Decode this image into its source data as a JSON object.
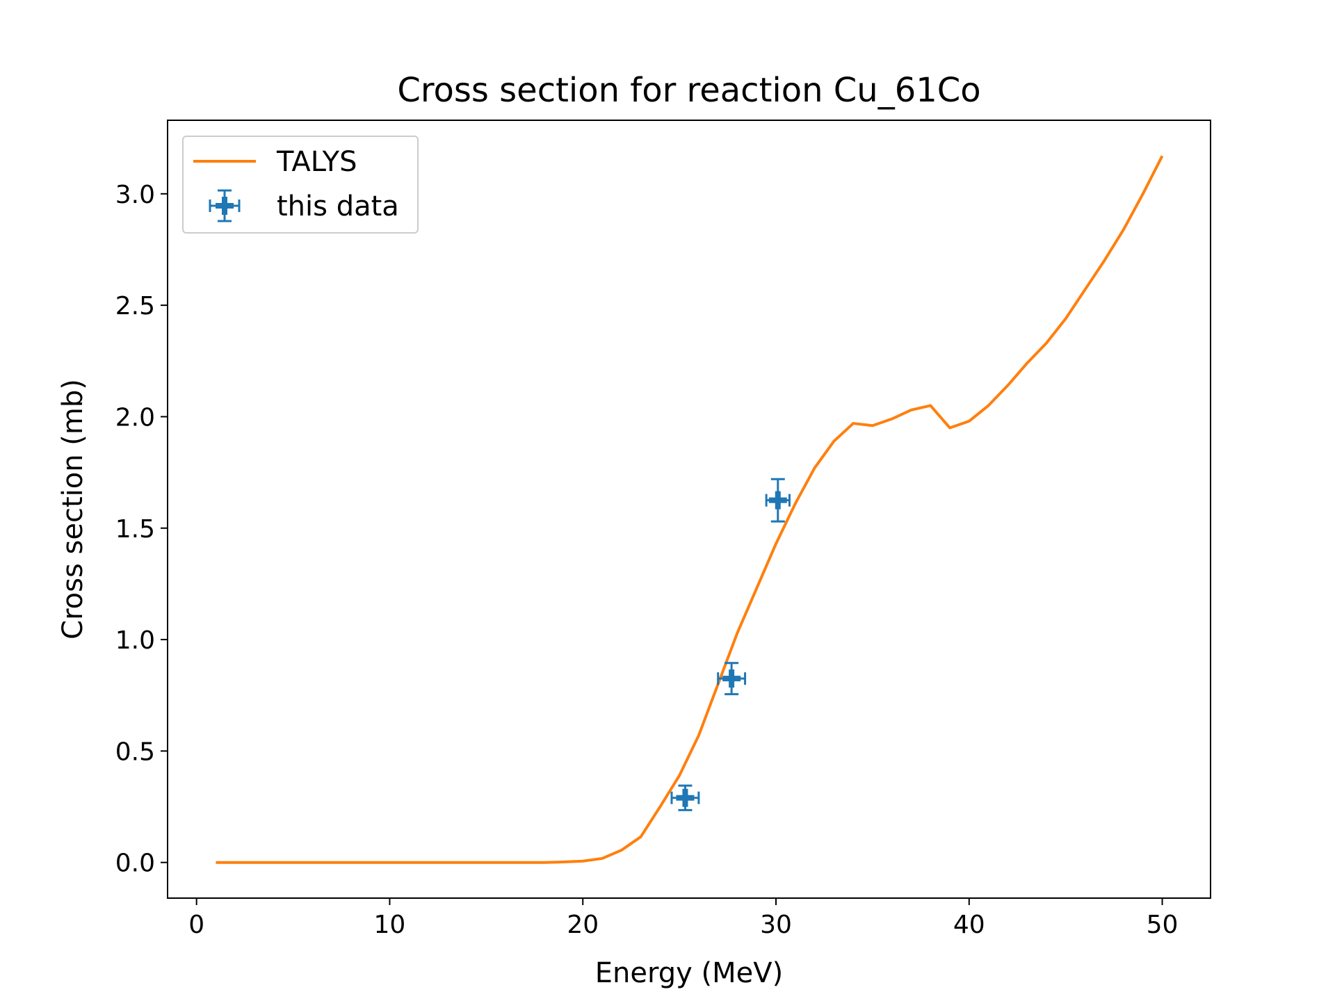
{
  "chart_data": {
    "type": "line",
    "title": "Cross section for reaction Cu_61Co",
    "xlabel": "Energy (MeV)",
    "ylabel": "Cross section (mb)",
    "xlim": [
      -1.5,
      52.5
    ],
    "ylim": [
      -0.16,
      3.33
    ],
    "x_ticks": [
      0,
      10,
      20,
      30,
      40,
      50
    ],
    "x_tick_labels": [
      "0",
      "10",
      "20",
      "30",
      "40",
      "50"
    ],
    "y_ticks": [
      0.0,
      0.5,
      1.0,
      1.5,
      2.0,
      2.5,
      3.0
    ],
    "y_tick_labels": [
      "0.0",
      "0.5",
      "1.0",
      "1.5",
      "2.0",
      "2.5",
      "3.0"
    ],
    "grid": false,
    "legend_position": "upper-left",
    "series": [
      {
        "name": "TALYS",
        "kind": "line",
        "color": "#ff7f0e",
        "x": [
          1,
          2,
          3,
          4,
          5,
          6,
          7,
          8,
          9,
          10,
          11,
          12,
          13,
          14,
          15,
          16,
          17,
          18,
          19,
          20,
          21,
          22,
          23,
          24,
          25,
          26,
          27,
          28,
          29,
          30,
          31,
          32,
          33,
          34,
          35,
          36,
          37,
          38,
          39,
          40,
          41,
          42,
          43,
          44,
          45,
          46,
          47,
          48,
          49,
          50
        ],
        "y": [
          0,
          0,
          0,
          0,
          0,
          0,
          0,
          0,
          0,
          0,
          0,
          0,
          0,
          0,
          0,
          0,
          0,
          0,
          0.002,
          0.006,
          0.018,
          0.055,
          0.115,
          0.25,
          0.39,
          0.57,
          0.8,
          1.03,
          1.23,
          1.43,
          1.61,
          1.77,
          1.89,
          1.97,
          1.96,
          1.99,
          2.03,
          2.05,
          1.95,
          1.98,
          2.05,
          2.14,
          2.24,
          2.33,
          2.44,
          2.57,
          2.7,
          2.84,
          3.0,
          3.17
        ]
      },
      {
        "name": "this data",
        "kind": "errorbar",
        "color": "#1f77b4",
        "x": [
          25.3,
          27.7,
          30.1
        ],
        "y": [
          0.29,
          0.825,
          1.625
        ],
        "xerr": [
          0.7,
          0.7,
          0.6
        ],
        "yerr": [
          0.055,
          0.07,
          0.095
        ]
      }
    ]
  }
}
